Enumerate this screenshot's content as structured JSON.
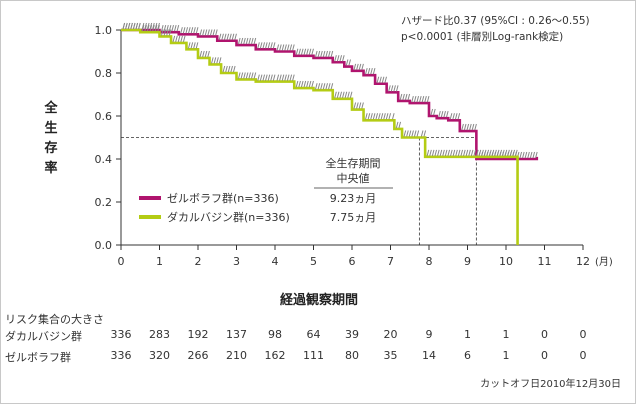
{
  "y_axis_label": "全生存率",
  "x_axis_label": "経過観察期間",
  "x_unit": "(月)",
  "stats": {
    "hazard": "ハザード比0.37 (95%CI : 0.26～0.55)",
    "pvalue": "p<0.0001 (非層別Log-rank検定)"
  },
  "median_table": {
    "header_line1": "全生存期間",
    "header_line2": "中央値"
  },
  "risk": {
    "title": "リスク集合の大きさ",
    "rows": [
      {
        "label": "ダカルバジン群",
        "values": [
          "336",
          "283",
          "192",
          "137",
          "98",
          "64",
          "39",
          "20",
          "9",
          "1",
          "1",
          "0",
          "0"
        ]
      },
      {
        "label": "ゼルボラフ群",
        "values": [
          "336",
          "320",
          "266",
          "210",
          "162",
          "111",
          "80",
          "35",
          "14",
          "6",
          "1",
          "0",
          "0"
        ]
      }
    ]
  },
  "cutoff_note": "カットオフ日2010年12月30日",
  "chart_data": {
    "type": "line",
    "step": true,
    "x_ticks": [
      "0",
      "1",
      "2",
      "3",
      "4",
      "5",
      "6",
      "7",
      "8",
      "9",
      "10",
      "11",
      "12"
    ],
    "y_ticks": [
      "0.0",
      "0.2",
      "0.4",
      "0.6",
      "0.8",
      "1.0"
    ],
    "xlim": [
      0,
      12
    ],
    "ylim": [
      0,
      1.0
    ],
    "reference_lines": [
      {
        "y": 0.5,
        "x_end": 9.23
      },
      {
        "x": 7.75,
        "y_top": 0.5
      },
      {
        "x": 9.23,
        "y_top": 0.5
      }
    ],
    "series": [
      {
        "name": "ゼルボラフ群(n=336)",
        "median": "9.23ヵ月",
        "color": "#b0146e",
        "points": [
          [
            0,
            1.0
          ],
          [
            0.5,
            1.0
          ],
          [
            1,
            0.99
          ],
          [
            1.5,
            0.98
          ],
          [
            2,
            0.97
          ],
          [
            2.5,
            0.95
          ],
          [
            3,
            0.93
          ],
          [
            3.5,
            0.91
          ],
          [
            4,
            0.9
          ],
          [
            4.5,
            0.88
          ],
          [
            5,
            0.87
          ],
          [
            5.5,
            0.85
          ],
          [
            5.8,
            0.83
          ],
          [
            6,
            0.81
          ],
          [
            6.3,
            0.79
          ],
          [
            6.6,
            0.75
          ],
          [
            6.9,
            0.71
          ],
          [
            7.2,
            0.67
          ],
          [
            7.5,
            0.66
          ],
          [
            8,
            0.6
          ],
          [
            8.2,
            0.59
          ],
          [
            8.5,
            0.58
          ],
          [
            8.8,
            0.53
          ],
          [
            9.23,
            0.4
          ],
          [
            10.8,
            0.41
          ]
        ]
      },
      {
        "name": "ダカルバジン群(n=336)",
        "median": "7.75ヵ月",
        "color": "#b4cc14",
        "points": [
          [
            0,
            1.0
          ],
          [
            0.5,
            0.99
          ],
          [
            1,
            0.97
          ],
          [
            1.3,
            0.94
          ],
          [
            1.7,
            0.91
          ],
          [
            2,
            0.87
          ],
          [
            2.3,
            0.84
          ],
          [
            2.6,
            0.8
          ],
          [
            3,
            0.77
          ],
          [
            3.5,
            0.76
          ],
          [
            4,
            0.76
          ],
          [
            4.5,
            0.73
          ],
          [
            5,
            0.72
          ],
          [
            5.5,
            0.68
          ],
          [
            6,
            0.63
          ],
          [
            6.3,
            0.58
          ],
          [
            7,
            0.58
          ],
          [
            7.1,
            0.54
          ],
          [
            7.3,
            0.5
          ],
          [
            7.75,
            0.5
          ],
          [
            7.9,
            0.41
          ],
          [
            10.3,
            0.41
          ],
          [
            10.3,
            0.0
          ]
        ]
      }
    ]
  }
}
